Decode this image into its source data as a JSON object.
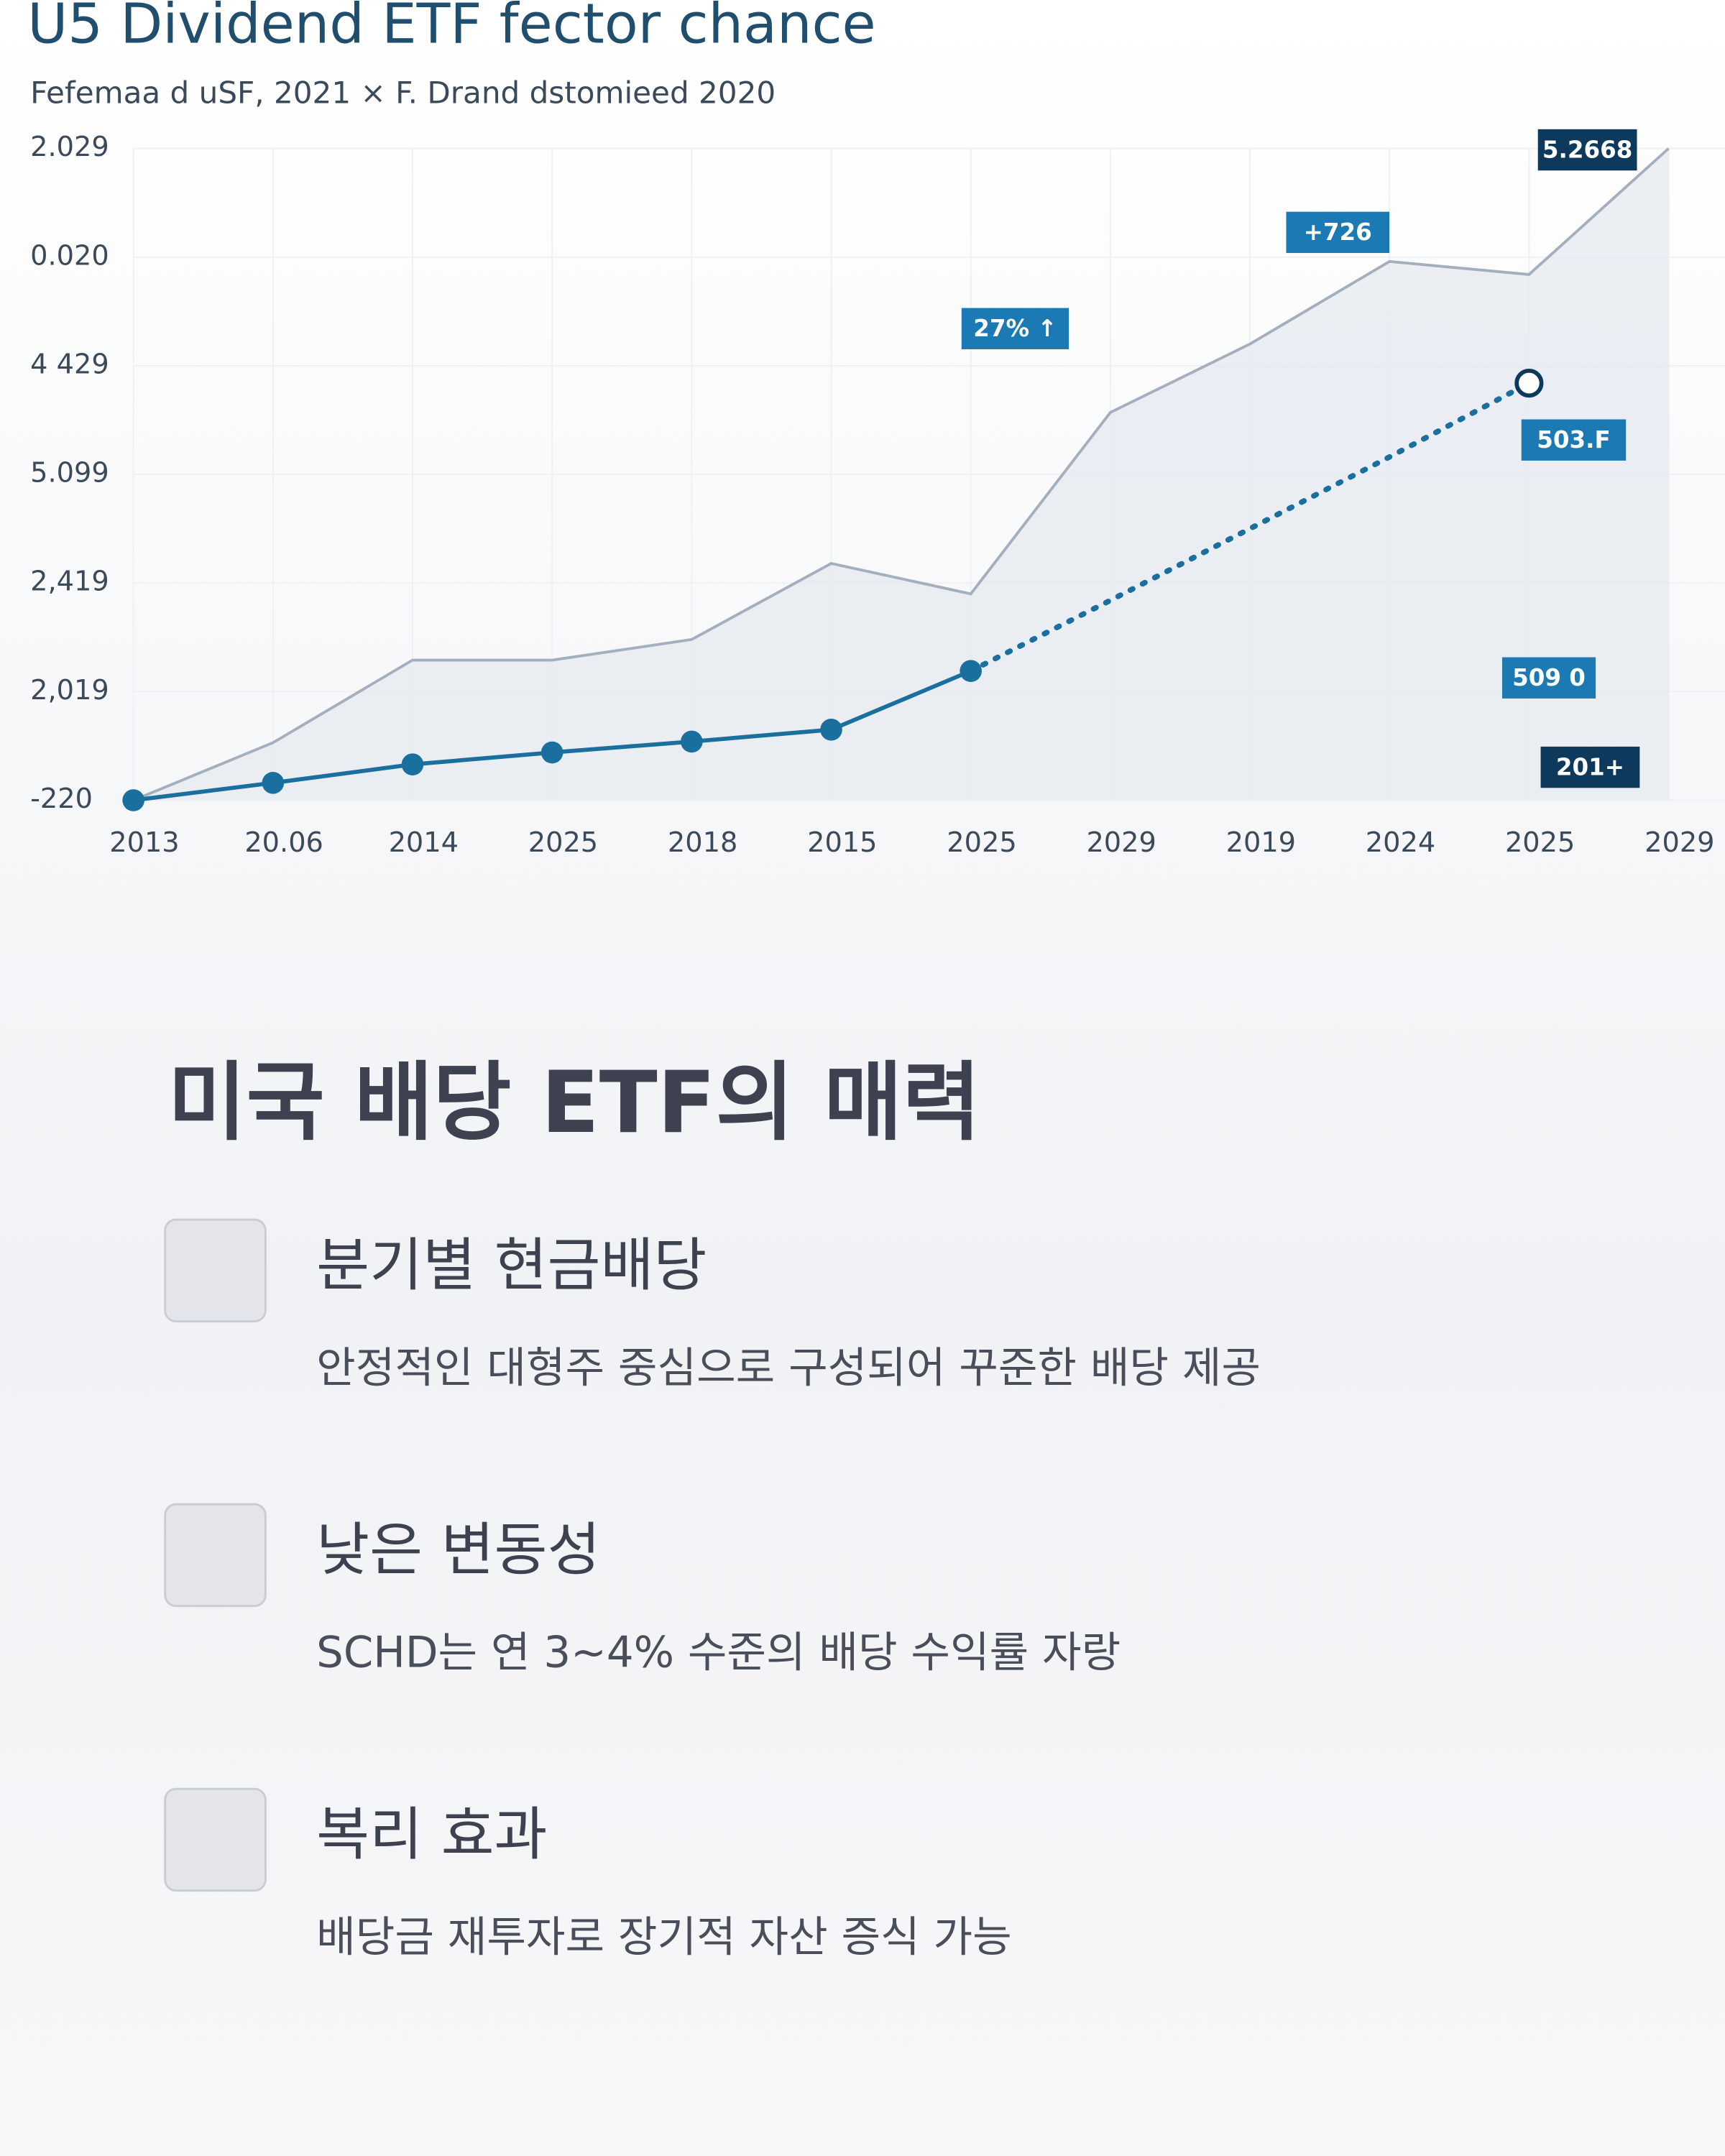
{
  "chart_data": {
    "type": "line",
    "title": "U5 Dividend ETF fector chance",
    "subtitle": "Fefemaa d uSF, 2021 × F. Drand dstomieed 2020",
    "categories": [
      "2013",
      "20.06",
      "2014",
      "2025",
      "2018",
      "2015",
      "2025",
      "2029",
      "2019",
      "2024",
      "2025",
      "2029"
    ],
    "series": [
      {
        "color": "#a3afbd",
        "values": [
          0,
          0.53,
          1.29,
          1.29,
          1.48,
          2.18,
          1.9,
          3.57,
          4.2,
          4.96,
          4.84,
          6.0
        ]
      },
      {
        "color": "#1a6f9e",
        "values": [
          0,
          0.16,
          0.33,
          0.44,
          0.54,
          0.65,
          1.19,
          null,
          null,
          null,
          null,
          null
        ]
      },
      {
        "color": "#1a6f9e",
        "style": "dotted",
        "values": [
          null,
          null,
          null,
          null,
          null,
          null,
          1.19,
          1.84,
          2.5,
          3.16,
          3.84,
          null
        ]
      }
    ],
    "ylim": [
      0,
      6
    ],
    "yticks": [
      {
        "value": 0,
        "label": "-220"
      },
      {
        "value": 1,
        "label": "2,019"
      },
      {
        "value": 2,
        "label": "2,419"
      },
      {
        "value": 3,
        "label": "5.099"
      },
      {
        "value": 4,
        "label": "4 429"
      },
      {
        "value": 5,
        "label": "0.020"
      },
      {
        "value": 6,
        "label": "2.029"
      }
    ],
    "grid": true,
    "annotations": [
      "5.2668",
      "+726",
      "27% ↑",
      "503.F",
      "509 0",
      "201+"
    ]
  },
  "section": {
    "heading": "미국 배당 ETF의 매력",
    "items": [
      {
        "title": "분기별 현금배당",
        "description": "안정적인 대형주 중심으로 구성되어 꾸준한 배당 제공"
      },
      {
        "title": "낮은 변동성",
        "description": "SCHD는 연 3~4% 수준의 배당 수익률 자랑"
      },
      {
        "title": "복리 효과",
        "description": "배당금 재투자로 장기적 자산 증식 가능"
      }
    ]
  }
}
